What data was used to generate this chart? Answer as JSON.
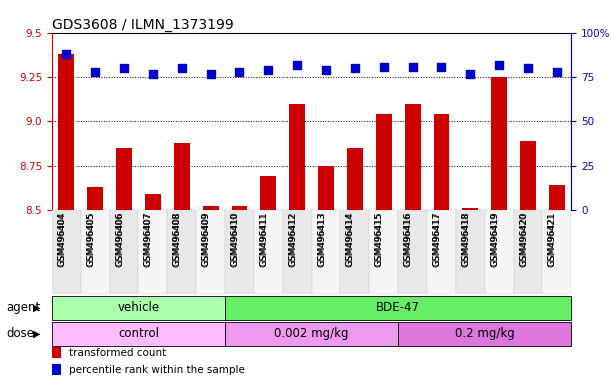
{
  "title": "GDS3608 / ILMN_1373199",
  "samples": [
    "GSM496404",
    "GSM496405",
    "GSM496406",
    "GSM496407",
    "GSM496408",
    "GSM496409",
    "GSM496410",
    "GSM496411",
    "GSM496412",
    "GSM496413",
    "GSM496414",
    "GSM496415",
    "GSM496416",
    "GSM496417",
    "GSM496418",
    "GSM496419",
    "GSM496420",
    "GSM496421"
  ],
  "transformed_count": [
    9.38,
    8.63,
    8.85,
    8.59,
    8.88,
    8.52,
    8.52,
    8.69,
    9.1,
    8.75,
    8.85,
    9.04,
    9.1,
    9.04,
    8.51,
    9.25,
    8.89,
    8.64
  ],
  "percentile_rank": [
    88,
    78,
    80,
    77,
    80,
    77,
    78,
    79,
    82,
    79,
    80,
    81,
    81,
    81,
    77,
    82,
    80,
    78
  ],
  "bar_color": "#cc0000",
  "dot_color": "#0000cc",
  "ylim_left": [
    8.5,
    9.5
  ],
  "ylim_right": [
    0,
    100
  ],
  "yticks_left": [
    8.5,
    8.75,
    9.0,
    9.25,
    9.5
  ],
  "yticks_right": [
    0,
    25,
    50,
    75,
    100
  ],
  "ytick_labels_right": [
    "0",
    "25",
    "50",
    "75",
    "100%"
  ],
  "hlines": [
    8.75,
    9.0,
    9.25
  ],
  "agent_groups": [
    {
      "label": "vehicle",
      "start": 0,
      "end": 6,
      "color": "#aaffaa"
    },
    {
      "label": "BDE-47",
      "start": 6,
      "end": 18,
      "color": "#66ee66"
    }
  ],
  "dose_groups": [
    {
      "label": "control",
      "start": 0,
      "end": 6,
      "color": "#ffbbff"
    },
    {
      "label": "0.002 mg/kg",
      "start": 6,
      "end": 12,
      "color": "#ee99ee"
    },
    {
      "label": "0.2 mg/kg",
      "start": 12,
      "end": 18,
      "color": "#dd77dd"
    }
  ],
  "agent_label": "agent",
  "dose_label": "dose",
  "legend_items": [
    {
      "label": "transformed count",
      "color": "#cc0000"
    },
    {
      "label": "percentile rank within the sample",
      "color": "#0000cc"
    }
  ],
  "bg_color": "#ffffff",
  "tick_color_left": "#cc0000",
  "tick_color_right": "#0000cc",
  "title_fontsize": 10,
  "tick_fontsize": 7.5,
  "label_fontsize": 8.5,
  "bar_width": 0.55,
  "dot_size": 30
}
